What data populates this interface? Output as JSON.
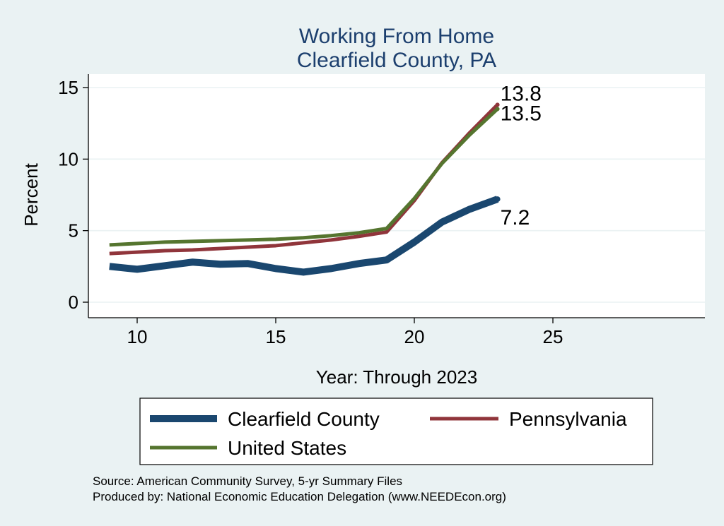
{
  "chart_data": {
    "type": "line",
    "title": "Working From Home",
    "subtitle": "Clearfield County, PA",
    "xlabel": "Year: Through 2023",
    "ylabel": "Percent",
    "xlim": [
      9,
      25
    ],
    "ylim": [
      0,
      15
    ],
    "x_ticks": [
      "10",
      "15",
      "20",
      "25"
    ],
    "y_ticks": [
      "0",
      "5",
      "10",
      "15"
    ],
    "grid": true,
    "legend_position": "bottom",
    "x": [
      9,
      10,
      11,
      12,
      13,
      14,
      15,
      16,
      17,
      18,
      19,
      20,
      21,
      22,
      23
    ],
    "series": [
      {
        "name": "Clearfield County",
        "color": "#1a476f",
        "values": [
          2.5,
          2.3,
          2.55,
          2.8,
          2.65,
          2.7,
          2.35,
          2.1,
          2.35,
          2.7,
          2.95,
          4.2,
          5.6,
          6.5,
          7.2
        ],
        "end_label": "7.2"
      },
      {
        "name": "Pennsylvania",
        "color": "#90353b",
        "values": [
          3.4,
          3.5,
          3.6,
          3.65,
          3.75,
          3.85,
          3.95,
          4.15,
          4.35,
          4.6,
          4.9,
          7.1,
          9.75,
          11.85,
          13.8
        ],
        "end_label": "13.8"
      },
      {
        "name": "United States",
        "color": "#55752f",
        "values": [
          4.0,
          4.1,
          4.2,
          4.25,
          4.3,
          4.35,
          4.4,
          4.5,
          4.65,
          4.85,
          5.15,
          7.25,
          9.7,
          11.7,
          13.5
        ],
        "end_label": "13.5"
      }
    ],
    "notes": [
      "Source: American Community Survey, 5-yr Summary Files",
      "Produced by: National Economic Education Delegation (www.NEEDEcon.org)"
    ]
  }
}
